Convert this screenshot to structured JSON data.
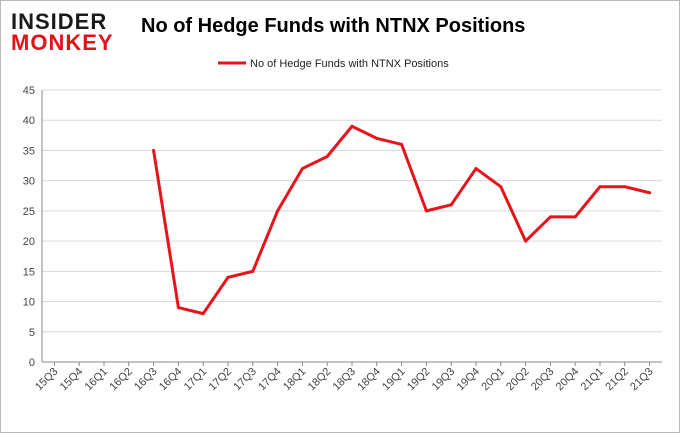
{
  "logo": {
    "line1": "INSIDER",
    "line2": "MONKEY"
  },
  "colors": {
    "line": "#e8141b",
    "grid": "#d9d9d9",
    "axis": "#888888",
    "logo_red": "#e1141b"
  },
  "chart_data": {
    "type": "line",
    "title": "No of Hedge Funds with NTNX Positions",
    "xlabel": "",
    "ylabel": "",
    "ylim": [
      0,
      45
    ],
    "yticks": [
      0,
      5,
      10,
      15,
      20,
      25,
      30,
      35,
      40,
      45
    ],
    "grid": true,
    "legend_position": "top-center",
    "categories": [
      "15Q3",
      "15Q4",
      "16Q1",
      "16Q2",
      "16Q3",
      "16Q4",
      "17Q1",
      "17Q2",
      "17Q3",
      "17Q4",
      "18Q1",
      "18Q2",
      "18Q3",
      "18Q4",
      "19Q1",
      "19Q2",
      "19Q3",
      "19Q4",
      "20Q1",
      "20Q2",
      "20Q3",
      "20Q4",
      "21Q1",
      "21Q2",
      "21Q3"
    ],
    "series": [
      {
        "name": "No of Hedge Funds with NTNX  Positions",
        "values": [
          null,
          null,
          null,
          null,
          35,
          9,
          8,
          14,
          15,
          25,
          32,
          34,
          39,
          37,
          36,
          25,
          26,
          32,
          29,
          20,
          24,
          24,
          29,
          29,
          28
        ]
      }
    ]
  }
}
